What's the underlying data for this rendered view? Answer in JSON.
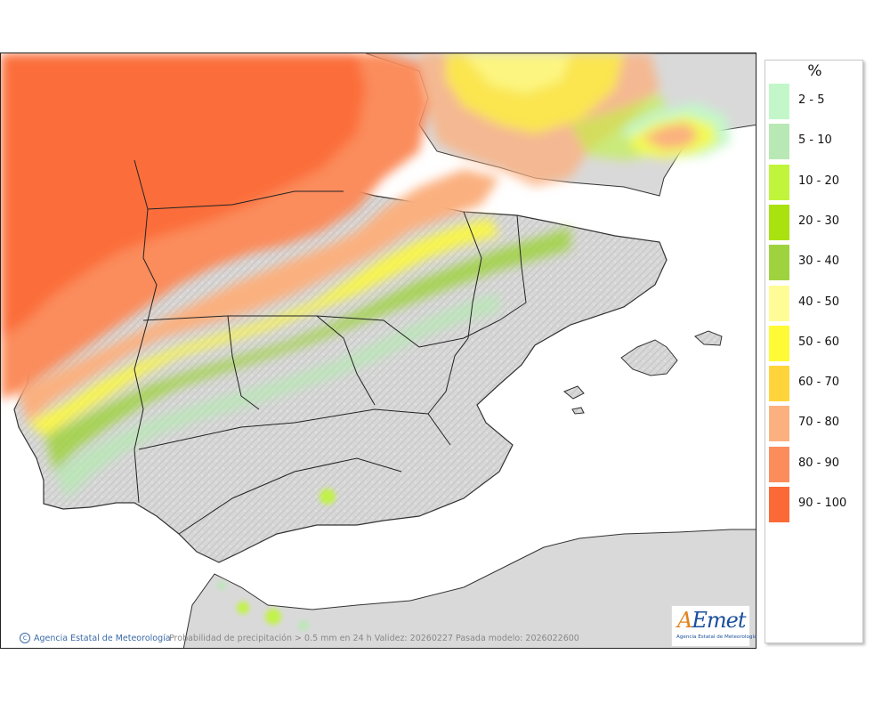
{
  "map": {
    "background_color": "#ffffff",
    "land_color": "#d9d9d9",
    "precipitation_zones": [
      "north-west coast",
      "Cantabrian coast",
      "Pyrenees",
      "Catalonia coast",
      "Portugal coast",
      "Alboran / Rif coast"
    ]
  },
  "legend": {
    "title": "%",
    "items": [
      {
        "label": "2 - 5",
        "color": "#c3f7c9"
      },
      {
        "label": "5 - 10",
        "color": "#b8e9b4"
      },
      {
        "label": "10 - 20",
        "color": "#c0f53b"
      },
      {
        "label": "20 - 30",
        "color": "#a9e20e"
      },
      {
        "label": "30 - 40",
        "color": "#9fd23f"
      },
      {
        "label": "40 - 50",
        "color": "#fefc96"
      },
      {
        "label": "50 - 60",
        "color": "#fefa35"
      },
      {
        "label": "60 - 70",
        "color": "#ffd43a"
      },
      {
        "label": "70 - 80",
        "color": "#fbb07f"
      },
      {
        "label": "80 - 90",
        "color": "#fb8c5c"
      },
      {
        "label": "90 - 100",
        "color": "#fb6a36"
      }
    ]
  },
  "footer": {
    "credit": "Agencia Estatal de Meteorología",
    "caption": "Probabilidad de precipitación > 0.5 mm en 24 h Validez: 20260227 Pasada modelo: 2026022600"
  },
  "logo": {
    "text_a": "A",
    "text_rest": "Emet",
    "subtitle": "Agencia Estatal de Meteorología"
  }
}
